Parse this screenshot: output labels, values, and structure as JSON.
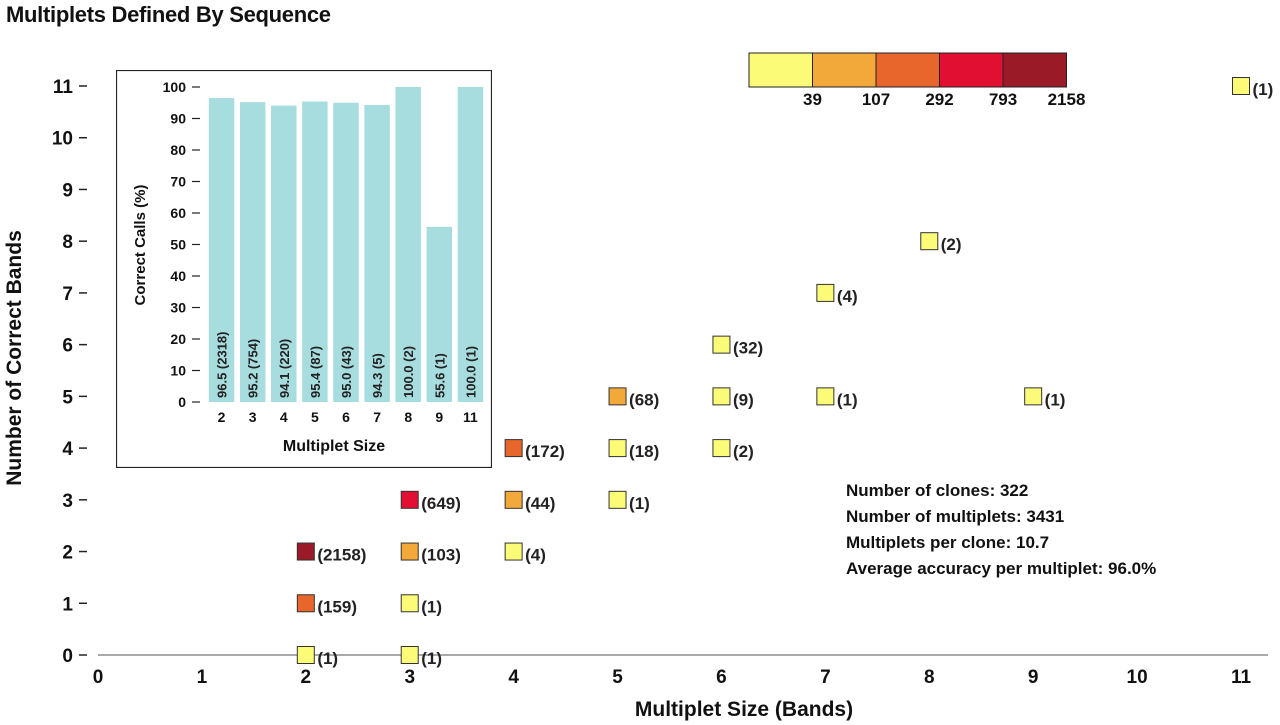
{
  "title": "Multiplets Defined By Sequence",
  "chart_data": [
    {
      "type": "scatter",
      "title": "Multiplets Defined By Sequence",
      "xlabel": "Multiplet Size (Bands)",
      "ylabel": "Number of Correct Bands",
      "xlim": [
        0,
        11
      ],
      "ylim": [
        0,
        11
      ],
      "x_ticks": [
        "0",
        "1",
        "2",
        "3",
        "4",
        "5",
        "6",
        "7",
        "8",
        "9",
        "10",
        "11"
      ],
      "y_ticks": [
        "0",
        "1",
        "2",
        "3",
        "4",
        "5",
        "6",
        "7",
        "8",
        "9",
        "10",
        "11"
      ],
      "grid": false,
      "points": [
        {
          "x": 2,
          "y": 0,
          "count": 1,
          "label": "(1)"
        },
        {
          "x": 2,
          "y": 1,
          "count": 159,
          "label": "(159)"
        },
        {
          "x": 2,
          "y": 2,
          "count": 2158,
          "label": "(2158)"
        },
        {
          "x": 3,
          "y": 0,
          "count": 1,
          "label": "(1)"
        },
        {
          "x": 3,
          "y": 1,
          "count": 1,
          "label": "(1)"
        },
        {
          "x": 3,
          "y": 2,
          "count": 103,
          "label": "(103)"
        },
        {
          "x": 3,
          "y": 3,
          "count": 649,
          "label": "(649)"
        },
        {
          "x": 4,
          "y": 2,
          "count": 4,
          "label": "(4)"
        },
        {
          "x": 4,
          "y": 3,
          "count": 44,
          "label": "(44)"
        },
        {
          "x": 4,
          "y": 4,
          "count": 172,
          "label": "(172)"
        },
        {
          "x": 5,
          "y": 3,
          "count": 1,
          "label": "(1)"
        },
        {
          "x": 5,
          "y": 4,
          "count": 18,
          "label": "(18)"
        },
        {
          "x": 5,
          "y": 5,
          "count": 68,
          "label": "(68)"
        },
        {
          "x": 6,
          "y": 4,
          "count": 2,
          "label": "(2)"
        },
        {
          "x": 6,
          "y": 5,
          "count": 9,
          "label": "(9)"
        },
        {
          "x": 6,
          "y": 6,
          "count": 32,
          "label": "(32)"
        },
        {
          "x": 7,
          "y": 5,
          "count": 1,
          "label": "(1)"
        },
        {
          "x": 7,
          "y": 7,
          "count": 4,
          "label": "(4)"
        },
        {
          "x": 8,
          "y": 8,
          "count": 2,
          "label": "(2)"
        },
        {
          "x": 9,
          "y": 5,
          "count": 1,
          "label": "(1)"
        },
        {
          "x": 11,
          "y": 11,
          "count": 1,
          "label": "(1)"
        }
      ],
      "color_scale": {
        "labels": [
          "39",
          "107",
          "292",
          "793",
          "2158"
        ],
        "colors": [
          "#fbfb78",
          "#f2a93a",
          "#e8652c",
          "#e10f32",
          "#9b1a28"
        ]
      },
      "stats": [
        "Number of clones: 322",
        "Number of multiplets: 3431",
        "Multiplets per clone: 10.7",
        "Average accuracy per multiplet: 96.0%"
      ]
    },
    {
      "type": "bar",
      "xlabel": "Multiplet Size",
      "ylabel": "Correct Calls (%)",
      "ylim": [
        0,
        100
      ],
      "y_ticks": [
        "0",
        "10",
        "20",
        "30",
        "40",
        "50",
        "60",
        "70",
        "80",
        "90",
        "100"
      ],
      "categories": [
        "2",
        "3",
        "4",
        "5",
        "6",
        "7",
        "8",
        "9",
        "11"
      ],
      "values": [
        96.5,
        95.2,
        94.1,
        95.4,
        95.0,
        94.3,
        100.0,
        55.6,
        100.0
      ],
      "bar_labels": [
        "96.5 (2318)",
        "95.2 (754)",
        "94.1 (220)",
        "95.4 (87)",
        "95.0 (43)",
        "94.3 (5)",
        "100.0 (2)",
        "55.6 (1)",
        "100.0 (1)"
      ],
      "bar_color": "#a8dde0"
    }
  ]
}
